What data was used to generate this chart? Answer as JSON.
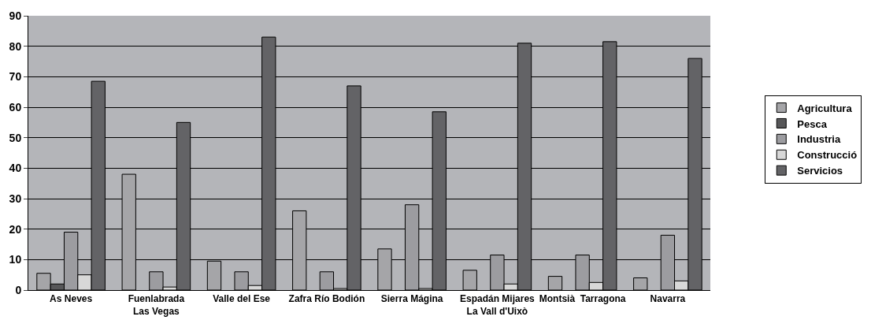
{
  "chart_data": {
    "type": "bar",
    "categories": [
      "As Neves",
      "Fuenlabrada\nLas Vegas",
      "Valle del Ese",
      "Zafra Río Bodión",
      "Sierra Mágina",
      "Espadán Mijares\nLa Vall d'Uixò",
      "Montsià  Tarragona",
      "Navarra"
    ],
    "series": [
      {
        "name": "Agricultura",
        "color": "#a5a5a8",
        "values": [
          5.5,
          38,
          9.5,
          26,
          13.5,
          6.5,
          4.5,
          4
        ]
      },
      {
        "name": "Pesca",
        "color": "#575759",
        "values": [
          2,
          0,
          0,
          0,
          0,
          0,
          0,
          0
        ]
      },
      {
        "name": "Industria",
        "color": "#9c9ca0",
        "values": [
          19,
          6,
          6,
          6,
          28,
          11.5,
          11.5,
          18
        ]
      },
      {
        "name": "Construcció",
        "color": "#d8d8d8",
        "values": [
          5,
          1,
          1.5,
          0.5,
          0.5,
          2,
          2.5,
          3
        ]
      },
      {
        "name": "Servicios",
        "color": "#636366",
        "values": [
          68.5,
          55,
          83,
          67,
          58.5,
          81,
          81.5,
          76
        ]
      }
    ],
    "ylim": [
      0,
      90
    ],
    "yticks": [
      0,
      10,
      20,
      30,
      40,
      50,
      60,
      70,
      80,
      90
    ],
    "grid": "y",
    "legend": "right"
  }
}
